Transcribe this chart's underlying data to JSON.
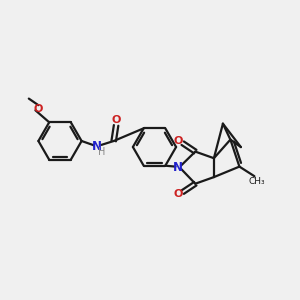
{
  "bg_color": "#f0f0f0",
  "bond_color": "#1a1a1a",
  "N_color": "#2222cc",
  "O_color": "#cc2222",
  "H_color": "#888888",
  "figsize": [
    3.0,
    3.0
  ],
  "dpi": 100,
  "xlim": [
    0,
    10
  ],
  "ylim": [
    0,
    10
  ]
}
